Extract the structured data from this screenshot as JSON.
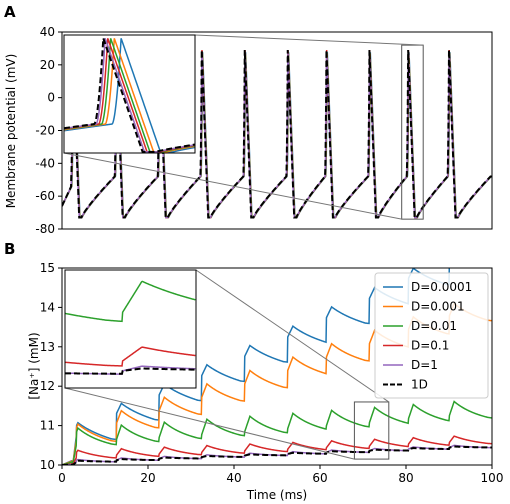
{
  "panels": {
    "a": {
      "label": "A"
    },
    "b": {
      "label": "B"
    }
  },
  "chart_data": [
    {
      "type": "line",
      "panel": "A",
      "title": "",
      "xlabel": "",
      "ylabel": "Membrane potential (mV)",
      "xlim": [
        0,
        100
      ],
      "ylim": [
        -80,
        40
      ],
      "xticks": [],
      "yticks": [
        40,
        20,
        0,
        -20,
        -40,
        -60,
        -80
      ],
      "spike_times_ms": [
        2.5,
        12.6,
        22.6,
        32.5,
        42.5,
        52.5,
        61.5,
        71.5,
        80.5,
        90.0
      ],
      "spike_peak_mV": 29,
      "trough_mV": -73,
      "series": [
        {
          "name": "D=0.0001",
          "color": "#1f77b4"
        },
        {
          "name": "D=0.001",
          "color": "#ff7f0e"
        },
        {
          "name": "D=0.01",
          "color": "#2ca02c"
        },
        {
          "name": "D=0.1",
          "color": "#d62728"
        },
        {
          "name": "D=1",
          "color": "#9467bd"
        },
        {
          "name": "1D",
          "color": "#000000",
          "style": "dashed"
        }
      ],
      "inset": {
        "zoom_region": {
          "x": [
            79,
            84
          ],
          "y": [
            -74,
            32
          ]
        },
        "description_series_order": [
          "D=0.0001",
          "D=0.001",
          "D=1"
        ]
      }
    },
    {
      "type": "line",
      "panel": "B",
      "title": "",
      "xlabel": "Time (ms)",
      "ylabel": "[Na⁺] (mM)",
      "xlim": [
        0,
        100
      ],
      "ylim": [
        10,
        15
      ],
      "xticks": [
        0,
        20,
        40,
        60,
        80,
        100
      ],
      "yticks": [
        15,
        14,
        13,
        12,
        11,
        10
      ],
      "legend": {
        "placement": "top-right"
      },
      "series": [
        {
          "name": "D=0.0001",
          "color": "#1f77b4",
          "start": 10.0,
          "base": 10.8,
          "step": 0.49,
          "bump": 0.3,
          "relax": 0.2
        },
        {
          "name": "D=0.001",
          "color": "#ff7f0e",
          "start": 10.0,
          "base": 10.7,
          "step": 0.34,
          "bump": 0.36,
          "relax": 0.16
        },
        {
          "name": "D=0.01",
          "color": "#2ca02c",
          "start": 10.0,
          "base": 10.55,
          "step": 0.075,
          "bump": 0.4,
          "relax": 0.1
        },
        {
          "name": "D=0.1",
          "color": "#d62728",
          "start": 10.0,
          "base": 10.2,
          "step": 0.04,
          "bump": 0.18,
          "relax": 0.05
        },
        {
          "name": "D=1",
          "color": "#9467bd",
          "start": 10.0,
          "base": 10.08,
          "step": 0.04,
          "bump": 0.06,
          "relax": 0.01
        },
        {
          "name": "1D",
          "color": "#000000",
          "style": "dashed",
          "start": 10.0,
          "base": 10.08,
          "step": 0.04,
          "bump": 0.03,
          "relax": 0.0
        }
      ],
      "inset": {
        "zoom_region": {
          "x": [
            68,
            76
          ],
          "y": [
            10.15,
            11.6
          ]
        }
      }
    }
  ]
}
